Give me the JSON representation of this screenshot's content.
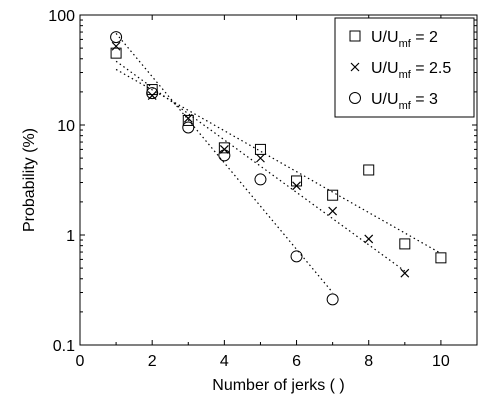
{
  "chart_data": {
    "type": "scatter",
    "xlabel": "Number of jerks ( )",
    "ylabel": "Probability (%)",
    "xlim": [
      0,
      11
    ],
    "ylim": [
      0.1,
      100
    ],
    "yscale": "log",
    "xticks": [
      "0",
      "2",
      "4",
      "6",
      "8",
      "10"
    ],
    "xtick_values": [
      0,
      2,
      4,
      6,
      8,
      10
    ],
    "yticks": [
      "0.1",
      "1",
      "10",
      "100"
    ],
    "ytick_values": [
      0.1,
      1,
      10,
      100
    ],
    "grid": false,
    "legend_position": "top-right",
    "series": [
      {
        "legend": {
          "prefix": "U/U",
          "sub": "mf",
          "suffix": " = 2"
        },
        "marker": "square",
        "x": [
          1,
          2,
          3,
          4,
          5,
          6,
          7,
          8,
          9,
          10
        ],
        "y": [
          45,
          21,
          11,
          6.2,
          6.0,
          3.1,
          2.3,
          3.9,
          0.83,
          0.62
        ],
        "trend": {
          "x": [
            1,
            10
          ],
          "y": [
            32,
            0.68
          ]
        }
      },
      {
        "legend": {
          "prefix": "U/U",
          "sub": "mf",
          "suffix": " = 2.5"
        },
        "marker": "cross",
        "x": [
          1,
          2,
          3,
          4,
          5,
          6,
          7,
          8,
          9
        ],
        "y": [
          52,
          18.5,
          11.5,
          6.0,
          5.0,
          2.8,
          1.65,
          0.92,
          0.45
        ],
        "trend": {
          "x": [
            1,
            9
          ],
          "y": [
            38,
            0.47
          ]
        }
      },
      {
        "legend": {
          "prefix": "U/U",
          "sub": "mf",
          "suffix": " = 3"
        },
        "marker": "circle",
        "x": [
          1,
          2,
          3,
          4,
          5,
          6,
          7
        ],
        "y": [
          63,
          19.5,
          9.5,
          5.3,
          3.2,
          0.64,
          0.26
        ],
        "trend": {
          "x": [
            1,
            7
          ],
          "y": [
            68,
            0.3
          ]
        }
      }
    ]
  }
}
